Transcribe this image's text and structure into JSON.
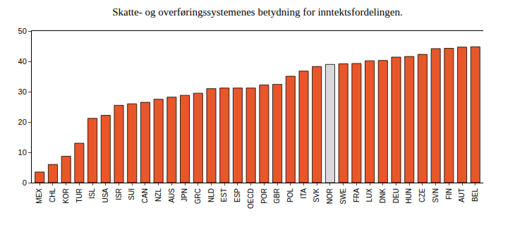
{
  "chart_data": {
    "type": "bar",
    "title": "Skatte- og overføringssystemenes betydning for inntektsfordelingen.",
    "categories": [
      "MEX",
      "CHL",
      "KOR",
      "TUR",
      "ISL",
      "USA",
      "ISR",
      "SUI",
      "CAN",
      "NZL",
      "AUS",
      "JPN",
      "GRC",
      "NLD",
      "EST",
      "ESP",
      "OECD",
      "POR",
      "GBR",
      "POL",
      "ITA",
      "SVK",
      "NOR",
      "SWE",
      "FRA",
      "LUX",
      "DNK",
      "DEU",
      "HUN",
      "CZE",
      "SVN",
      "FIN",
      "AUT",
      "BEL"
    ],
    "values": [
      3.5,
      6,
      8.7,
      13,
      21.2,
      22.2,
      25.5,
      26,
      26.5,
      27.5,
      28.2,
      28.8,
      29.5,
      31,
      31.2,
      31.2,
      31.2,
      32.2,
      32.4,
      35.1,
      36.8,
      38.3,
      39,
      39.2,
      39.3,
      40.2,
      40.3,
      41.4,
      41.6,
      42.3,
      44.2,
      44.3,
      44.7,
      44.8
    ],
    "colors": [
      "#e8572a",
      "#e8572a",
      "#e8572a",
      "#e8572a",
      "#e8572a",
      "#e8572a",
      "#e8572a",
      "#e8572a",
      "#e8572a",
      "#e8572a",
      "#e8572a",
      "#e8572a",
      "#e8572a",
      "#e8572a",
      "#e8572a",
      "#e8572a",
      "#e8572a",
      "#e8572a",
      "#e8572a",
      "#e8572a",
      "#e8572a",
      "#e8572a",
      "#d9d9d9",
      "#e8572a",
      "#e8572a",
      "#e8572a",
      "#e8572a",
      "#e8572a",
      "#e8572a",
      "#e8572a",
      "#e8572a",
      "#e8572a",
      "#e8572a",
      "#e8572a"
    ],
    "ylim": [
      0,
      50
    ],
    "yticks": [
      0,
      10,
      20,
      30,
      40,
      50
    ],
    "y2lim": [
      0,
      50
    ],
    "y2ticks": [
      0,
      10,
      20,
      30,
      40,
      50
    ],
    "grid": false
  }
}
